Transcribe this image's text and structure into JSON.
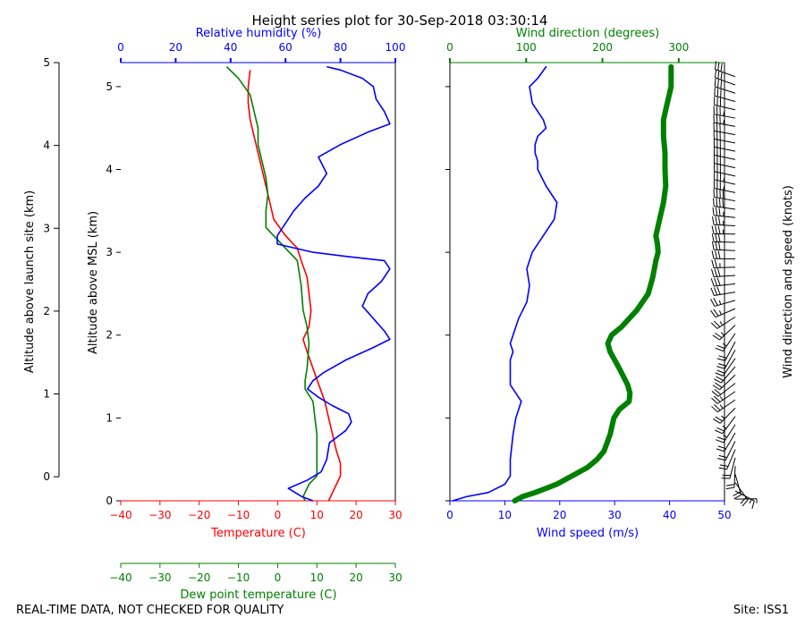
{
  "title": "Height series plot for 30-Sep-2018 03:30:14",
  "footer": {
    "left": "REAL-TIME DATA, NOT CHECKED FOR QUALITY",
    "right": "Site: ISS1"
  },
  "colors": {
    "temp": "#ff0000",
    "dewpoint": "#008000",
    "rh": "#0000ff",
    "wind_speed": "#0000ff",
    "wind_dir": "#008000",
    "axis": "#000000"
  },
  "chart_data": [
    {
      "type": "line",
      "name": "thermo-panel",
      "left_axis": {
        "label": "Altitude above launch site (km)",
        "range": [
          0,
          5
        ],
        "ticks": [
          0,
          1,
          2,
          3,
          4,
          5
        ]
      },
      "msl_axis": {
        "label": "Altitude above MSL (km)",
        "offset_km": 0.29,
        "ticks": [
          0,
          1,
          2,
          3,
          4,
          5
        ]
      },
      "ylim_msl": [
        0,
        5.29
      ],
      "x_temp": {
        "label": "Temperature (C)",
        "range": [
          -40,
          30
        ],
        "ticks": [
          -40,
          -30,
          -20,
          -10,
          0,
          10,
          20,
          30
        ]
      },
      "x_dew": {
        "label": "Dew point temperature (C)",
        "range": [
          -40,
          30
        ],
        "ticks": [
          -40,
          -30,
          -20,
          -10,
          0,
          10,
          20,
          30
        ]
      },
      "x_rh": {
        "label": "Relative humidity (%)",
        "range": [
          0,
          100
        ],
        "ticks": [
          0,
          20,
          40,
          60,
          80,
          100
        ]
      },
      "series": [
        {
          "name": "Temperature",
          "axis": "temp",
          "color": "#ff0000",
          "y": [
            0,
            0.05,
            0.1,
            0.2,
            0.3,
            0.45,
            0.6,
            0.8,
            1.0,
            1.1,
            1.2,
            1.4,
            1.6,
            1.8,
            1.95,
            2.1,
            2.3,
            2.5,
            2.7,
            2.9,
            3.05,
            3.2,
            3.4,
            3.6,
            3.8,
            4.0,
            4.2,
            4.4,
            4.6,
            4.8,
            5.0,
            5.2
          ],
          "values": [
            13,
            13.5,
            14,
            15,
            16,
            16,
            15,
            14,
            13,
            12.5,
            12,
            10.5,
            9,
            7.5,
            6.5,
            8,
            8.5,
            8,
            7.5,
            6,
            5,
            2,
            -1,
            -2,
            -3,
            -4,
            -5,
            -6,
            -7,
            -7.5,
            -7.5,
            -7
          ]
        },
        {
          "name": "Dew point",
          "axis": "dew",
          "color": "#008000",
          "y": [
            0,
            0.05,
            0.1,
            0.2,
            0.3,
            0.5,
            0.8,
            1.0,
            1.2,
            1.35,
            1.45,
            1.6,
            1.9,
            2.1,
            2.3,
            2.6,
            2.9,
            3.1,
            3.3,
            3.5,
            3.7,
            3.9,
            4.1,
            4.3,
            4.5,
            4.7,
            4.9,
            5.1,
            5.24
          ],
          "values": [
            7,
            6.5,
            7,
            8,
            10,
            10,
            10,
            9.5,
            9,
            7,
            7,
            7.5,
            8,
            7.5,
            6.5,
            6,
            5,
            1,
            -3,
            -3,
            -2.5,
            -3,
            -4,
            -5,
            -5,
            -6,
            -7,
            -10,
            -13
          ]
        },
        {
          "name": "Relative humidity",
          "axis": "rh",
          "color": "#0000ff",
          "y": [
            0,
            0.05,
            0.15,
            0.25,
            0.35,
            0.5,
            0.7,
            0.85,
            0.95,
            1.05,
            1.15,
            1.25,
            1.35,
            1.45,
            1.55,
            1.7,
            1.85,
            1.95,
            2.05,
            2.2,
            2.35,
            2.5,
            2.65,
            2.8,
            2.9,
            2.95,
            3.0,
            3.1,
            3.2,
            3.35,
            3.5,
            3.65,
            3.8,
            3.95,
            4.15,
            4.3,
            4.45,
            4.55,
            4.7,
            4.85,
            5.0,
            5.1,
            5.2,
            5.24
          ],
          "values": [
            70,
            66,
            61,
            68,
            73,
            75,
            76,
            82,
            84,
            83,
            77,
            72,
            68,
            70,
            74,
            82,
            92,
            98,
            96,
            92,
            88,
            90,
            95,
            98,
            96,
            82,
            70,
            57,
            57,
            60,
            63,
            67,
            72,
            75,
            72,
            80,
            90,
            98,
            96,
            93,
            92,
            88,
            80,
            75
          ]
        }
      ]
    },
    {
      "type": "line",
      "name": "wind-panel",
      "x_speed": {
        "label": "Wind speed (m/s)",
        "range": [
          0,
          50
        ],
        "ticks": [
          0,
          10,
          20,
          30,
          40,
          50
        ]
      },
      "x_dir": {
        "label": "Wind direction (degrees)",
        "range": [
          0,
          360
        ],
        "ticks": [
          0,
          100,
          200,
          300
        ]
      },
      "barbs_label": "Wind direction and speed (knots)",
      "series": [
        {
          "name": "Wind speed",
          "axis": "speed",
          "color": "#0000ff",
          "y": [
            0,
            0.05,
            0.1,
            0.2,
            0.3,
            0.5,
            0.8,
            1.0,
            1.1,
            1.2,
            1.3,
            1.4,
            1.5,
            1.7,
            1.8,
            1.9,
            2.0,
            2.2,
            2.4,
            2.6,
            2.8,
            2.9,
            3.0,
            3.2,
            3.4,
            3.6,
            3.8,
            4.0,
            4.1,
            4.2,
            4.3,
            4.4,
            4.5,
            4.6,
            4.8,
            5.0,
            5.1,
            5.24
          ],
          "values": [
            0.5,
            3,
            7,
            10,
            11,
            11,
            11.5,
            12,
            12.5,
            13,
            12,
            11,
            11,
            11,
            11.5,
            11,
            11.5,
            12.5,
            14,
            14.5,
            14,
            14.5,
            15,
            17,
            19,
            19.5,
            17.5,
            16,
            16,
            15.5,
            15.5,
            16,
            17.5,
            17,
            15,
            14.5,
            16,
            17.5
          ]
        },
        {
          "name": "Wind direction",
          "axis": "dir",
          "color": "#008000",
          "y": [
            0,
            0.05,
            0.1,
            0.2,
            0.3,
            0.4,
            0.5,
            0.6,
            0.8,
            1.0,
            1.1,
            1.2,
            1.3,
            1.4,
            1.6,
            1.8,
            1.9,
            2.0,
            2.1,
            2.3,
            2.5,
            2.7,
            2.9,
            3.0,
            3.1,
            3.2,
            3.4,
            3.6,
            3.8,
            4.0,
            4.2,
            4.4,
            4.6,
            4.8,
            5.0,
            5.24
          ],
          "values": [
            85,
            95,
            112,
            140,
            160,
            180,
            193,
            202,
            210,
            215,
            222,
            235,
            236,
            233,
            222,
            210,
            207,
            212,
            225,
            245,
            260,
            266,
            270,
            273,
            272,
            270,
            275,
            280,
            283,
            282,
            282,
            280,
            280,
            285,
            290,
            290
          ]
        }
      ]
    }
  ]
}
